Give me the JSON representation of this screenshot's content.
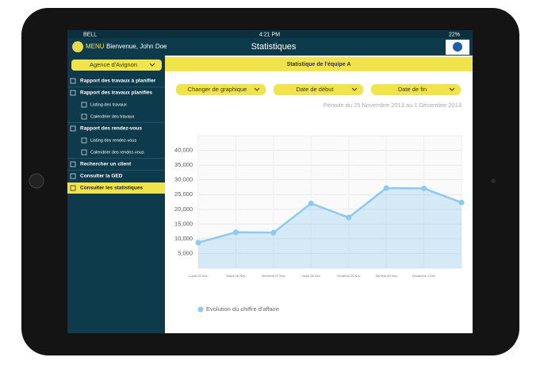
{
  "status_bar": {
    "carrier": "BELL",
    "time": "4:21 PM",
    "battery": "22%"
  },
  "header": {
    "menu": "MENU",
    "welcome": "Bienvenue, John Doe",
    "title": "Statistiques"
  },
  "sidebar": {
    "agency": "Agence d'Avignon",
    "items": [
      {
        "label": "Rapport des travaux à planifier",
        "level": 1
      },
      {
        "label": "Rapport des travaux planifiés",
        "level": 1
      },
      {
        "label": "Listing des travaux",
        "level": 2
      },
      {
        "label": "Calendrier des travaux",
        "level": 2
      },
      {
        "label": "Rapport des rendez-vous",
        "level": 1
      },
      {
        "label": "Listing des rendez-vous",
        "level": 2
      },
      {
        "label": "Calendrier des rendez-vous",
        "level": 2
      },
      {
        "label": "Rechercher un client",
        "level": 1
      },
      {
        "label": "Consulter la GED",
        "level": 1
      },
      {
        "label": "Consulter les statistiques",
        "level": 1,
        "active": true
      }
    ]
  },
  "main": {
    "banner": "Statistique de l'équipe A",
    "buttons": [
      "Changer de graphique",
      "Date de début",
      "Date de fin"
    ],
    "period": "Période du 25 Novembre 2013 au 1 Décembre 2013"
  },
  "chart_data": {
    "type": "area",
    "categories": [
      "Lundi 25 Nov",
      "Mardi 26 Nov",
      "Mercredi 27 Nov",
      "Jeudi 28 Nov",
      "Vendredi 29 Nov",
      "Samedi 30 Nov",
      "Dimanche 1 Déc",
      null
    ],
    "series": [
      {
        "name": "Evolution du chiffre d'affaire",
        "color": "#8ec9f0",
        "values": [
          8700,
          12200,
          12100,
          22000,
          17200,
          27200,
          27100,
          22300
        ]
      }
    ],
    "ylim": [
      0,
      45000
    ],
    "yticks": [
      {
        "value": 5000,
        "label": "5,000"
      },
      {
        "value": 10000,
        "label": "10,000"
      },
      {
        "value": 15000,
        "label": "15,000"
      },
      {
        "value": 20000,
        "label": "20,000"
      },
      {
        "value": 25000,
        "label": "25,000"
      },
      {
        "value": 30000,
        "label": "30,000"
      },
      {
        "value": 35000,
        "label": "35,000"
      },
      {
        "value": 40000,
        "label": "40,000"
      }
    ],
    "grid": true
  }
}
